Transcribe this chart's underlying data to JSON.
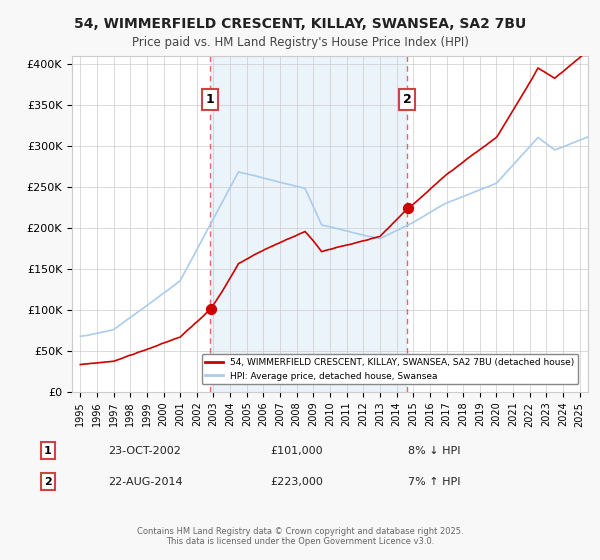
{
  "title_line1": "54, WIMMERFIELD CRESCENT, KILLAY, SWANSEA, SA2 7BU",
  "title_line2": "Price paid vs. HM Land Registry's House Price Index (HPI)",
  "bg_color": "#f0f4ff",
  "plot_bg_color": "#ffffff",
  "grid_color": "#cccccc",
  "red_line_color": "#cc0000",
  "blue_line_color": "#aaccee",
  "vline_color": "#dd4444",
  "purchase1_date": 2002.81,
  "purchase1_price": 101000,
  "purchase2_date": 2014.64,
  "purchase2_price": 223000,
  "legend_label_red": "54, WIMMERFIELD CRESCENT, KILLAY, SWANSEA, SA2 7BU (detached house)",
  "legend_label_blue": "HPI: Average price, detached house, Swansea",
  "annotation1_num": "1",
  "annotation1_date": "23-OCT-2002",
  "annotation1_price": "£101,000",
  "annotation1_hpi": "8% ↓ HPI",
  "annotation2_num": "2",
  "annotation2_date": "22-AUG-2014",
  "annotation2_price": "£223,000",
  "annotation2_hpi": "7% ↑ HPI",
  "footer": "Contains HM Land Registry data © Crown copyright and database right 2025.\nThis data is licensed under the Open Government Licence v3.0.",
  "ylim": [
    0,
    410000
  ],
  "yticks": [
    0,
    50000,
    100000,
    150000,
    200000,
    250000,
    300000,
    350000,
    400000
  ],
  "xlim_start": 1994.5,
  "xlim_end": 2025.5
}
